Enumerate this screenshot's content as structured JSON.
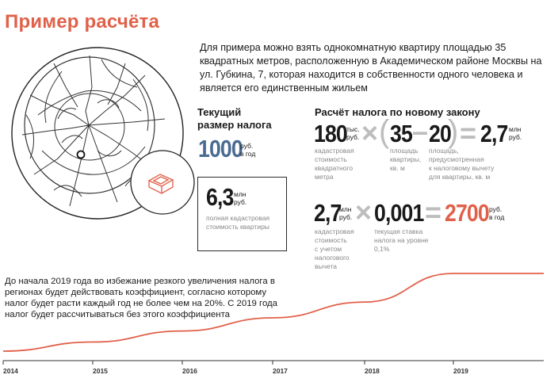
{
  "title": "Пример расчёта",
  "intro": "Для примера можно взять однокомнатную квартиру площадью 35 квадратных метров, расположенную в Академическом районе Москвы на ул. Губкина, 7, которая находится в собственности одного человека и является его единственным жильем",
  "current_tax": {
    "heading_line1": "Текущий",
    "heading_line2": "размер налога",
    "value": "1000",
    "unit_line1": "руб.",
    "unit_line2": "в год"
  },
  "cadastral_total": {
    "value": "6,3",
    "unit_line1": "млн",
    "unit_line2": "руб.",
    "caption_line1": "полная кадастровая",
    "caption_line2": "стоимость квартиры"
  },
  "new_law": {
    "heading": "Расчёт налога по новому закону",
    "formula1": {
      "term1": {
        "value": "180",
        "unit_line1": "тыс.",
        "unit_line2": "руб.",
        "caption": [
          "кадастровая",
          "стоимость",
          "квадратного",
          "метра"
        ]
      },
      "op_multiply": "×",
      "open_paren": "(",
      "term2": {
        "value": "35",
        "caption": [
          "площадь",
          "квартиры,",
          "кв. м"
        ]
      },
      "op_minus": "–",
      "term3": {
        "value": "20",
        "caption": [
          "площадь,",
          "предусмотренная",
          "к налоговому вычету",
          "для квартиры, кв. м"
        ]
      },
      "close_paren": ")",
      "op_equals": "=",
      "result": {
        "value": "2,7",
        "unit_line1": "млн",
        "unit_line2": "руб."
      }
    },
    "formula2": {
      "term1": {
        "value": "2,7",
        "unit_line1": "млн",
        "unit_line2": "руб.",
        "caption": [
          "кадастровая",
          "стоимость",
          "с учетом",
          "налогового",
          "вычета"
        ]
      },
      "op_multiply": "×",
      "term2": {
        "value": "0,001",
        "caption": [
          "текущая ставка",
          "налога на уровне",
          "0,1%"
        ]
      },
      "op_equals": "=",
      "result": {
        "value": "2700",
        "unit_line1": "руб.",
        "unit_line2": "в год"
      }
    }
  },
  "note": "До начала 2019 года во избежание резкого увеличения налога в регионах будет действовать коэффициент, согласно которому налог будет расти каждый год не более чем на 20%. С 2019 года налог будет рассчитываться без этого коэффициента",
  "chart_data": {
    "type": "line",
    "x": [
      "2014",
      "2015",
      "2016",
      "2017",
      "2018",
      "2019"
    ],
    "tick_labels": [
      "2014",
      "2015",
      "2016",
      "2017",
      "2018",
      "2019"
    ],
    "series": [
      {
        "values": [
          1000,
          1200,
          1440,
          1728,
          2074,
          2700
        ],
        "color": "#e0614a"
      }
    ],
    "grid": false,
    "colors": {
      "line": "#e0614a",
      "axis": "#333333"
    }
  },
  "colors": {
    "accent": "#e0614a",
    "blue": "#4a6b91",
    "operator": "#bdbdbd",
    "caption": "#888888"
  }
}
